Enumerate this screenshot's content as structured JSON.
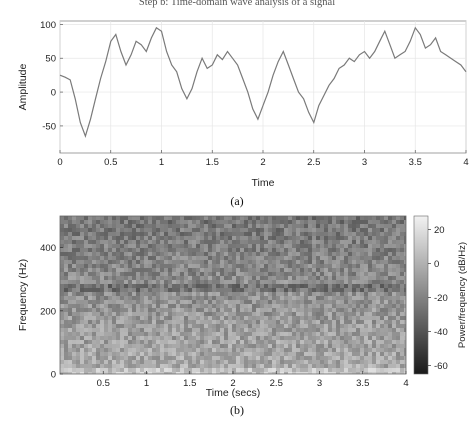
{
  "caption_top_cutoff": "Step b: Time-domain wave analysis of a signal",
  "chart_data": [
    {
      "type": "line",
      "caption": "(a)",
      "xlabel": "Time",
      "ylabel": "Amplitude",
      "xlim": [
        0,
        4
      ],
      "ylim": [
        -90,
        105
      ],
      "xticks": [
        "0",
        "0.5",
        "1",
        "1.5",
        "2",
        "2.5",
        "3",
        "3.5",
        "4"
      ],
      "yticks": [
        "-50",
        "0",
        "50",
        "100"
      ],
      "grid": true,
      "series": [
        {
          "color": "#7a7a7a",
          "x": [
            0,
            0.05,
            0.1,
            0.15,
            0.2,
            0.25,
            0.3,
            0.35,
            0.4,
            0.45,
            0.5,
            0.55,
            0.6,
            0.65,
            0.7,
            0.75,
            0.8,
            0.85,
            0.9,
            0.95,
            1.0,
            1.05,
            1.1,
            1.15,
            1.2,
            1.25,
            1.3,
            1.35,
            1.4,
            1.45,
            1.5,
            1.55,
            1.6,
            1.65,
            1.7,
            1.75,
            1.8,
            1.85,
            1.9,
            1.95,
            2.0,
            2.05,
            2.1,
            2.15,
            2.2,
            2.25,
            2.3,
            2.35,
            2.4,
            2.45,
            2.5,
            2.55,
            2.6,
            2.65,
            2.7,
            2.75,
            2.8,
            2.85,
            2.9,
            2.95,
            3.0,
            3.05,
            3.1,
            3.15,
            3.2,
            3.25,
            3.3,
            3.35,
            3.4,
            3.45,
            3.5,
            3.55,
            3.6,
            3.65,
            3.7,
            3.75,
            3.8,
            3.85,
            3.9,
            3.95,
            4.0
          ],
          "values": [
            25,
            22,
            18,
            -10,
            -45,
            -65,
            -40,
            -10,
            20,
            45,
            75,
            85,
            60,
            40,
            55,
            75,
            70,
            60,
            80,
            95,
            90,
            60,
            40,
            30,
            5,
            -10,
            5,
            30,
            50,
            35,
            40,
            55,
            48,
            60,
            50,
            40,
            20,
            0,
            -25,
            -40,
            -20,
            0,
            25,
            45,
            60,
            40,
            20,
            0,
            -10,
            -30,
            -45,
            -20,
            -5,
            10,
            20,
            35,
            40,
            50,
            45,
            55,
            60,
            50,
            60,
            75,
            90,
            70,
            50,
            55,
            60,
            75,
            95,
            85,
            65,
            70,
            80,
            60,
            55,
            50,
            45,
            40,
            30
          ]
        }
      ]
    },
    {
      "type": "heatmap",
      "caption": "(b)",
      "xlabel": "Time (secs)",
      "ylabel": "Frequency (Hz)",
      "colorbar_label": "Power/frequency (dB/Hz)",
      "xlim": [
        0,
        4
      ],
      "ylim": [
        0,
        500
      ],
      "clim": [
        -65,
        28
      ],
      "xticks": [
        "0.5",
        "1",
        "1.5",
        "2",
        "2.5",
        "3",
        "3.5",
        "4"
      ],
      "yticks": [
        "0",
        "200",
        "400"
      ],
      "cticks": [
        "20",
        "0",
        "-20",
        "-40",
        "-60"
      ],
      "colormap": "gray",
      "band_hz": 275
    }
  ]
}
